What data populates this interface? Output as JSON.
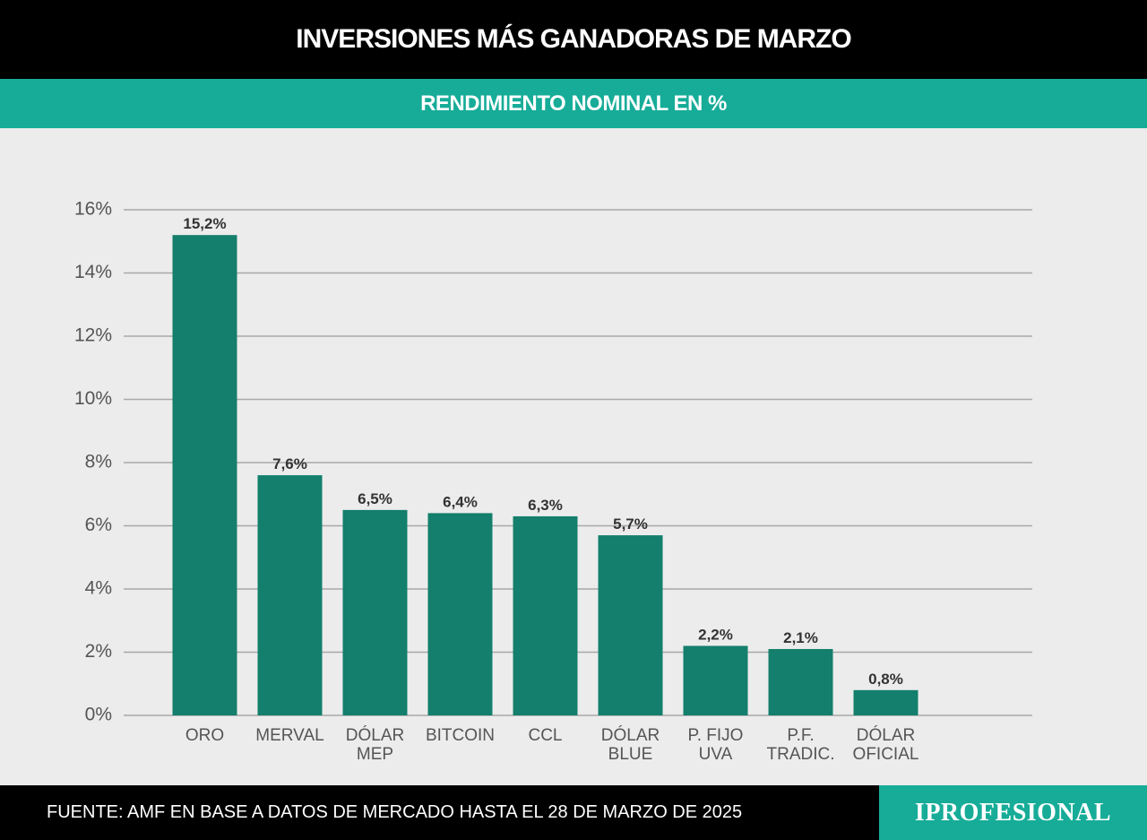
{
  "header": {
    "title": "INVERSIONES MÁS GANADORAS DE MARZO",
    "subtitle": "RENDIMIENTO NOMINAL EN %"
  },
  "colors": {
    "bar": "#137f6c",
    "accent": "#16ac98",
    "gridline": "#a8a8a8"
  },
  "chart_data": {
    "type": "bar",
    "categories": [
      [
        "ORO"
      ],
      [
        "MERVAL"
      ],
      [
        "DÓLAR",
        "MEP"
      ],
      [
        "BITCOIN"
      ],
      [
        "CCL"
      ],
      [
        "DÓLAR",
        "BLUE"
      ],
      [
        "P. FIJO",
        "UVA"
      ],
      [
        "P.F.",
        "TRADIC."
      ],
      [
        "DÓLAR",
        "OFICIAL"
      ]
    ],
    "values": [
      15.2,
      7.6,
      6.5,
      6.4,
      6.3,
      5.7,
      2.2,
      2.1,
      0.8
    ],
    "data_labels": [
      "15,2%",
      "7,6%",
      "6,5%",
      "6,4%",
      "6,3%",
      "5,7%",
      "2,2%",
      "2,1%",
      "0,8%"
    ],
    "ylim": [
      0,
      16
    ],
    "yticks": [
      0,
      2,
      4,
      6,
      8,
      10,
      12,
      14,
      16
    ],
    "ytick_labels": [
      "0%",
      "2%",
      "4%",
      "6%",
      "8%",
      "10%",
      "12%",
      "14%",
      "16%"
    ],
    "grid": true,
    "legend": "none"
  },
  "footer": {
    "source": "FUENTE: AMF EN BASE A DATOS DE MERCADO HASTA EL 28 DE MARZO DE 2025",
    "logo": "IPROFESIONAL"
  }
}
